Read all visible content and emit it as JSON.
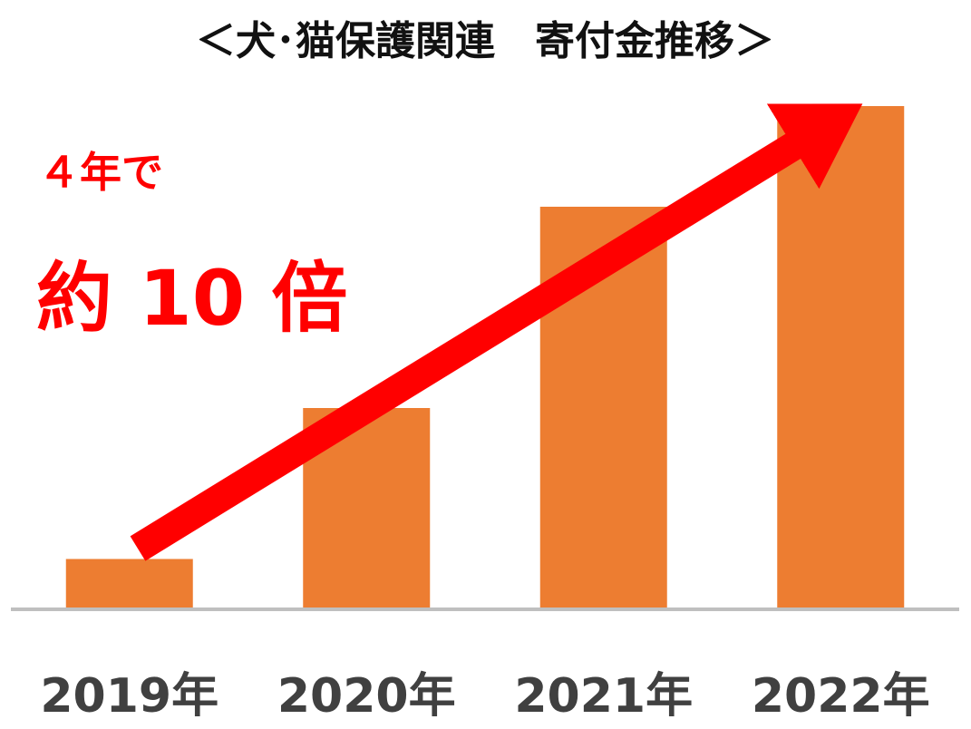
{
  "title": "＜犬･猫保護関連　寄付金推移＞",
  "annotation": {
    "line1": "４年で",
    "line2": "約 10 倍"
  },
  "colors": {
    "bar": "#ED7D31",
    "arrow": "#FF0000",
    "annotation": "#FF0000",
    "axis": "#BFBFBF",
    "tick_label": "#404040",
    "title": "#111111"
  },
  "chart_data": {
    "type": "bar",
    "title": "＜犬･猫保護関連　寄付金推移＞",
    "categories": [
      "2019年",
      "2020年",
      "2021年",
      "2022年"
    ],
    "values": [
      1,
      4,
      8,
      10
    ],
    "ylim": [
      0,
      10.5
    ],
    "grid": false,
    "legend": "none",
    "xlabel": "",
    "ylabel": ""
  }
}
